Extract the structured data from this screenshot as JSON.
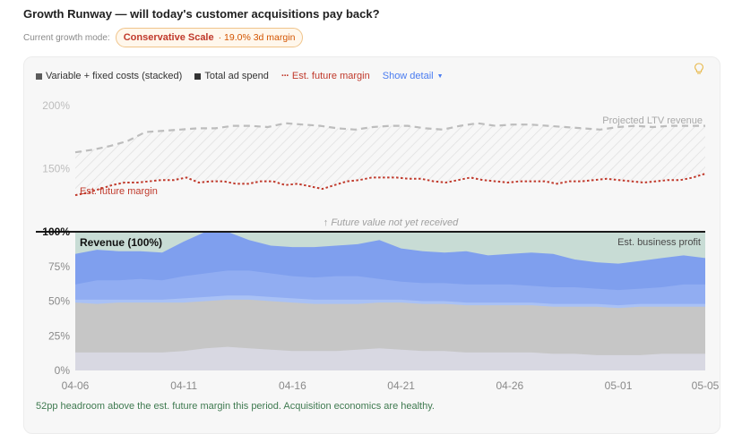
{
  "title": "Growth Runway — will today's customer acquisitions pay back?",
  "mode": {
    "label": "Current growth mode:",
    "name": "Conservative Scale",
    "detail": "· 19.0% 3d margin"
  },
  "legend": {
    "costs": "Variable + fixed costs (stacked)",
    "ad": "Total ad spend",
    "margin_marker": "···",
    "margin": "Est. future margin",
    "detail_toggle": "Show detail",
    "caret": "▼"
  },
  "icons": {
    "bulb": "lightbulb-icon",
    "caret": "chevron-down-icon"
  },
  "footer": "52pp headroom above the est. future margin this period. Acquisition economics are healthy.",
  "chart_data": {
    "type": "area",
    "x": [
      "04-06",
      "04-07",
      "04-08",
      "04-09",
      "04-10",
      "04-11",
      "04-12",
      "04-13",
      "04-14",
      "04-15",
      "04-16",
      "04-17",
      "04-18",
      "04-19",
      "04-20",
      "04-21",
      "04-22",
      "04-23",
      "04-24",
      "04-25",
      "04-26",
      "04-27",
      "04-28",
      "04-29",
      "04-30",
      "05-01",
      "05-02",
      "05-03",
      "05-04",
      "05-05"
    ],
    "xticks": [
      "04-06",
      "04-11",
      "04-16",
      "04-21",
      "04-26",
      "05-01",
      "05-05"
    ],
    "yticks_lower": [
      "0%",
      "25%",
      "50%",
      "75%",
      "100%"
    ],
    "yticks_upper": [
      "150%",
      "200%"
    ],
    "ylim_lower": [
      0,
      100
    ],
    "ylim_upper": [
      100,
      200
    ],
    "colors": {
      "base": "#d8d8e2",
      "fixed": "#c6c6c6",
      "band1": "#a9c1f5",
      "band2": "#91adf2",
      "ad": "#7f9fee",
      "profit": "#c8dcd5",
      "ltv": "#bdbdbd",
      "margin": "#c0392b"
    },
    "series": [
      {
        "key": "base",
        "values": [
          13,
          13,
          13,
          13,
          13,
          14,
          16,
          17,
          16,
          15,
          14,
          14,
          14,
          15,
          16,
          15,
          14,
          14,
          13,
          13,
          13,
          13,
          12,
          12,
          11,
          11,
          11,
          12,
          12,
          12
        ]
      },
      {
        "key": "fixed",
        "values": [
          49,
          48,
          49,
          49,
          49,
          49,
          50,
          51,
          51,
          50,
          49,
          48,
          48,
          48,
          49,
          49,
          48,
          48,
          47,
          47,
          47,
          47,
          46,
          46,
          46,
          45,
          46,
          46,
          46,
          46
        ]
      },
      {
        "key": "band1",
        "values": [
          51,
          51,
          51,
          51,
          51,
          52,
          53,
          54,
          54,
          53,
          52,
          51,
          51,
          51,
          51,
          51,
          50,
          50,
          49,
          49,
          49,
          49,
          48,
          48,
          48,
          47,
          48,
          48,
          48,
          48
        ]
      },
      {
        "key": "band2",
        "values": [
          62,
          65,
          65,
          66,
          65,
          68,
          70,
          72,
          72,
          70,
          68,
          67,
          68,
          68,
          66,
          64,
          63,
          63,
          62,
          62,
          62,
          61,
          60,
          60,
          59,
          58,
          59,
          60,
          62,
          62
        ]
      },
      {
        "key": "ad",
        "values": [
          84,
          87,
          86,
          86,
          85,
          93,
          100,
          100,
          94,
          90,
          89,
          89,
          90,
          91,
          94,
          88,
          86,
          85,
          86,
          83,
          84,
          85,
          84,
          80,
          78,
          77,
          79,
          81,
          83,
          81
        ]
      }
    ],
    "ltv_series": {
      "name": "Projected LTV revenue",
      "values": [
        163,
        165,
        168,
        172,
        179,
        180,
        181,
        182,
        182,
        184,
        184,
        183,
        186,
        185,
        184,
        182,
        181,
        183,
        184,
        184,
        182,
        181,
        184,
        186,
        184,
        185,
        185,
        184,
        183,
        182,
        181,
        183,
        184,
        183,
        184,
        184,
        184
      ]
    },
    "margin_series": {
      "name": "Est. future margin",
      "values": [
        129,
        131,
        134,
        137,
        139,
        139,
        140,
        141,
        141,
        143,
        139,
        140,
        140,
        138,
        138,
        140,
        140,
        137,
        138,
        136,
        134,
        137,
        140,
        141,
        143,
        143,
        143,
        142,
        142,
        140,
        139,
        141,
        143,
        141,
        140,
        139,
        140,
        140,
        140,
        138,
        140,
        140,
        141,
        142,
        141,
        140,
        139,
        140,
        141,
        141,
        143,
        146
      ]
    },
    "annotations": {
      "ltv_label": "Projected LTV revenue",
      "margin_label": "Est. future margin",
      "future_note": "↑ Future value not yet received",
      "revenue_label": "Revenue (100%)",
      "profit_label": "Est. business profit"
    }
  }
}
